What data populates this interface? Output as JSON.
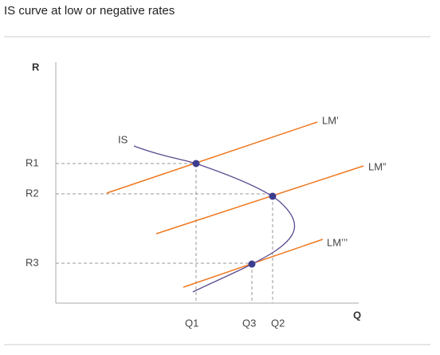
{
  "title": "IS curve at low or negative rates",
  "axes": {
    "y": "R",
    "x": "Q"
  },
  "y_labels": [
    "R1",
    "R2",
    "R3"
  ],
  "x_labels": [
    "Q1",
    "Q3",
    "Q2"
  ],
  "curves": {
    "is": "IS",
    "lm1": "LM’",
    "lm2": "LM”",
    "lm3": "LM’’’"
  }
}
